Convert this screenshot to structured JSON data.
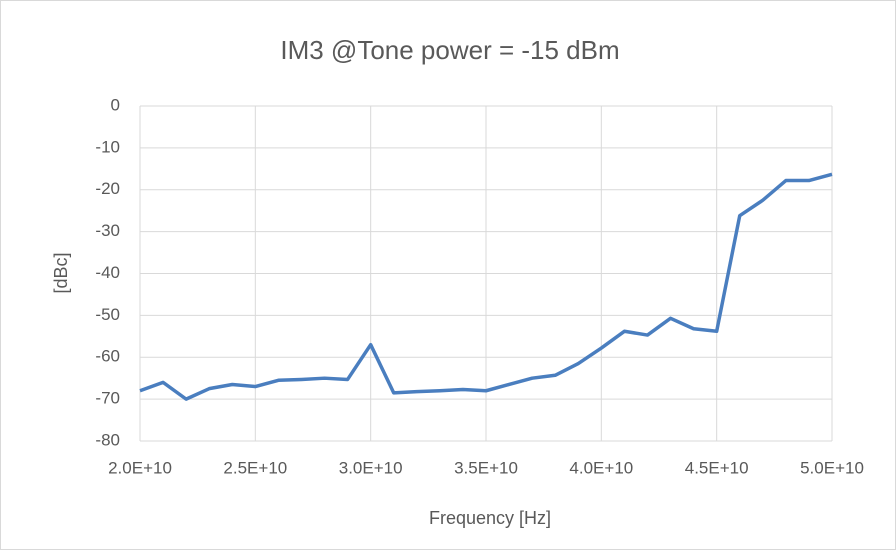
{
  "chart_data": {
    "type": "line",
    "title": "IM3 @Tone power = -15 dBm",
    "x_label": "Frequency [Hz]",
    "y_label": "[dBc]",
    "x": [
      20000000000,
      21000000000,
      22000000000,
      23000000000,
      24000000000,
      25000000000,
      26000000000,
      27000000000,
      28000000000,
      29000000000,
      30000000000,
      31000000000,
      32000000000,
      33000000000,
      34000000000,
      35000000000,
      36000000000,
      37000000000,
      38000000000,
      39000000000,
      40000000000,
      41000000000,
      42000000000,
      43000000000,
      44000000000,
      45000000000,
      46000000000,
      47000000000,
      48000000000,
      49000000000,
      50000000000
    ],
    "series": [
      {
        "color": "#4a7ebf",
        "values": [
          -68,
          -66,
          -70,
          -67.5,
          -66.5,
          -67,
          -65.5,
          -65.3,
          -65,
          -65.3,
          -57,
          -68.5,
          -68.2,
          -68,
          -67.7,
          -68,
          -66.5,
          -65,
          -64.3,
          -61.5,
          -57.8,
          -53.8,
          -54.7,
          -50.7,
          -53.2,
          -53.8,
          -26.2,
          -22.5,
          -17.8,
          -17.8,
          -16.3
        ]
      }
    ],
    "xlim": [
      20000000000,
      50000000000
    ],
    "xticks": [
      {
        "value": 20000000000,
        "label": "2.0E+10"
      },
      {
        "value": 25000000000,
        "label": "2.5E+10"
      },
      {
        "value": 30000000000,
        "label": "3.0E+10"
      },
      {
        "value": 35000000000,
        "label": "3.5E+10"
      },
      {
        "value": 40000000000,
        "label": "4.0E+10"
      },
      {
        "value": 45000000000,
        "label": "4.5E+10"
      },
      {
        "value": 50000000000,
        "label": "5.0E+10"
      }
    ],
    "ylim": [
      -80,
      0
    ],
    "yticks": [
      0,
      -10,
      -20,
      -30,
      -40,
      -50,
      -60,
      -70,
      -80
    ],
    "grid": true
  }
}
